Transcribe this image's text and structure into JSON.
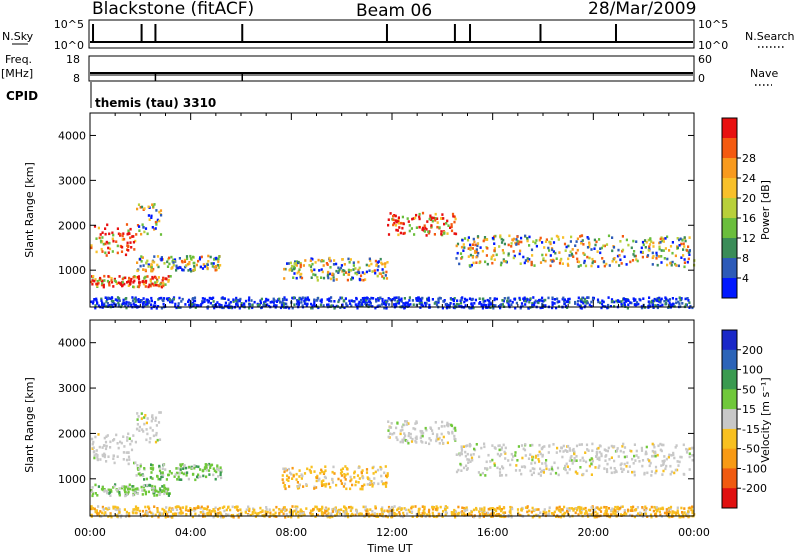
{
  "chart_data": {
    "type": "heatmap",
    "header": {
      "station": "Blackstone (fitACF)",
      "beam": "Beam 06",
      "date": "28/Mar/2009",
      "cpid_label": "CPID",
      "cpid_text": "themis (tau) 3310"
    },
    "x_axis": {
      "label": "Time UT",
      "range_hours": [
        0,
        24
      ],
      "ticks": [
        "00:00",
        "04:00",
        "08:00",
        "12:00",
        "16:00",
        "20:00",
        "00:00"
      ]
    },
    "top_panels": {
      "nsky": {
        "left_label": "N.Sky",
        "left_ticks": [
          "10^5",
          "10^0"
        ],
        "right_label": "N.Search",
        "right_ticks": [
          "10^5",
          "10^0"
        ],
        "spikes_hours": [
          0.12,
          2.05,
          2.6,
          6.05,
          11.8,
          14.5,
          15.1,
          17.9,
          20.9
        ]
      },
      "freq": {
        "left_label": "Freq.",
        "left_unit": "[MHz]",
        "left_ticks": [
          "18",
          "8"
        ],
        "right_label": "Nave",
        "right_ticks": [
          "60",
          "0"
        ],
        "spikes_hours": [
          2.6,
          6.05
        ]
      }
    },
    "panels": [
      {
        "name": "power",
        "ylabel": "Slant Range [km]",
        "yticks": [
          1000,
          2000,
          3000,
          4000
        ],
        "ylim": [
          180,
          4500
        ],
        "colorbar": {
          "label": "Power [dB]",
          "ticks": [
            "4",
            "8",
            "12",
            "16",
            "20",
            "24",
            "28"
          ],
          "colors": [
            "#0018ff",
            "#2c5ab8",
            "#3a8c58",
            "#6abe3c",
            "#b8d03a",
            "#f8c02a",
            "#f89a1e",
            "#f45a10",
            "#e81010"
          ]
        }
      },
      {
        "name": "velocity",
        "ylabel": "Slant Range [km]",
        "yticks": [
          1000,
          2000,
          3000,
          4000
        ],
        "ylim": [
          180,
          4500
        ],
        "colorbar": {
          "label": "Velocity [m s⁻¹]",
          "ticks": [
            "200",
            "100",
            "50",
            "15",
            "-15",
            "-50",
            "-100",
            "-200"
          ],
          "colors": [
            "#1a28c8",
            "#2c64b8",
            "#3a9a50",
            "#70c83a",
            "#c8c8c8",
            "#f8c020",
            "#f89a14",
            "#f05a10",
            "#e01010"
          ]
        }
      }
    ],
    "scatter_regions": [
      {
        "t0": 0.0,
        "t1": 1.8,
        "r0": 1350,
        "r1": 2050,
        "power": "high",
        "velocity": "grey"
      },
      {
        "t0": 1.8,
        "t1": 2.8,
        "r0": 1800,
        "r1": 2500,
        "power": "mixed",
        "velocity": "grey"
      },
      {
        "t0": 0.0,
        "t1": 3.2,
        "r0": 650,
        "r1": 900,
        "power": "high",
        "velocity": "green"
      },
      {
        "t0": 1.8,
        "t1": 5.2,
        "r0": 1000,
        "r1": 1350,
        "power": "mixed",
        "velocity": "green"
      },
      {
        "t0": 7.6,
        "t1": 11.8,
        "r0": 800,
        "r1": 1300,
        "power": "mixed",
        "velocity": "orange"
      },
      {
        "t0": 11.8,
        "t1": 14.5,
        "r0": 1800,
        "r1": 2300,
        "power": "high",
        "velocity": "grey"
      },
      {
        "t0": 14.5,
        "t1": 24.0,
        "r0": 1100,
        "r1": 1800,
        "power": "mixed",
        "velocity": "grey"
      },
      {
        "t0": 0.0,
        "t1": 24.0,
        "r0": 180,
        "r1": 420,
        "power": "low",
        "velocity": "orange"
      }
    ]
  }
}
